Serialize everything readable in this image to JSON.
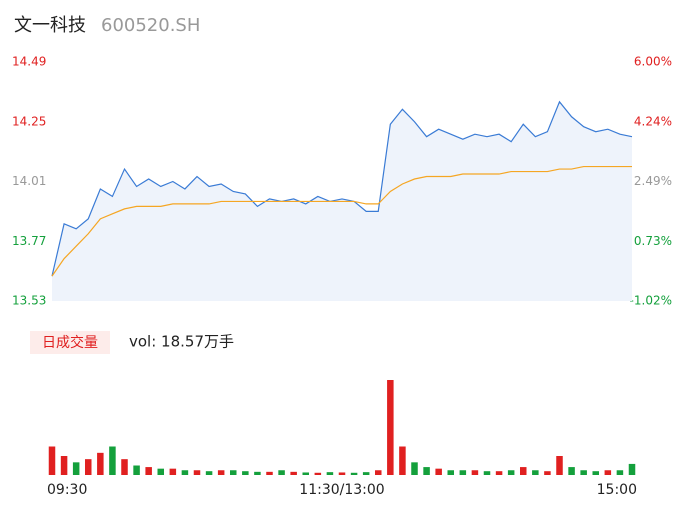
{
  "header": {
    "name": "文一科技",
    "code": "600520.SH"
  },
  "chart_data": [
    {
      "type": "line",
      "x": [
        "09:30",
        null,
        null,
        null,
        null,
        null,
        null,
        null,
        null,
        null,
        null,
        null,
        null,
        null,
        null,
        null,
        null,
        null,
        null,
        null,
        null,
        null,
        null,
        null,
        "11:30/13:00",
        null,
        null,
        null,
        null,
        null,
        null,
        null,
        null,
        null,
        null,
        null,
        null,
        null,
        null,
        null,
        null,
        null,
        null,
        null,
        null,
        null,
        null,
        null,
        "15:00"
      ],
      "series": [
        {
          "name": "price",
          "color": "#3a7bd5",
          "values": [
            13.63,
            13.84,
            13.82,
            13.86,
            13.98,
            13.95,
            14.06,
            13.99,
            14.02,
            13.99,
            14.01,
            13.98,
            14.03,
            13.99,
            14.0,
            13.97,
            13.96,
            13.91,
            13.94,
            13.93,
            13.94,
            13.92,
            13.95,
            13.93,
            13.94,
            13.93,
            13.89,
            13.89,
            14.24,
            14.3,
            14.25,
            14.19,
            14.22,
            14.2,
            14.18,
            14.2,
            14.19,
            14.2,
            14.17,
            14.24,
            14.19,
            14.21,
            14.33,
            14.27,
            14.23,
            14.21,
            14.22,
            14.2,
            14.19
          ]
        },
        {
          "name": "average",
          "color": "#f5a623",
          "values": [
            13.63,
            13.7,
            13.75,
            13.8,
            13.86,
            13.88,
            13.9,
            13.91,
            13.91,
            13.91,
            13.92,
            13.92,
            13.92,
            13.92,
            13.93,
            13.93,
            13.93,
            13.93,
            13.93,
            13.93,
            13.93,
            13.93,
            13.93,
            13.93,
            13.93,
            13.93,
            13.92,
            13.92,
            13.97,
            14.0,
            14.02,
            14.03,
            14.03,
            14.03,
            14.04,
            14.04,
            14.04,
            14.04,
            14.05,
            14.05,
            14.05,
            14.05,
            14.06,
            14.06,
            14.07,
            14.07,
            14.07,
            14.07,
            14.07
          ]
        }
      ],
      "ylim": [
        13.53,
        14.49
      ],
      "yticks": [
        14.49,
        14.25,
        14.01,
        13.77,
        13.53
      ],
      "y2lim": [
        -1.02,
        6.0
      ],
      "y2ticks": [
        {
          "value": 6.0,
          "label": "6.00%"
        },
        {
          "value": 4.24,
          "label": "4.24%"
        },
        {
          "value": 2.49,
          "label": "2.49%"
        },
        {
          "value": 0.73,
          "label": "0.73%"
        },
        {
          "value": -1.02,
          "label": "-1.02%"
        }
      ],
      "up_color": "#e02020",
      "down_color": "#14a03c",
      "flat_color": "#999999"
    },
    {
      "type": "bar",
      "title": "日成交量",
      "subtitle": "vol: 18.57万手",
      "values": [
        9000,
        6000,
        4000,
        5000,
        7000,
        9000,
        5000,
        3000,
        2500,
        2000,
        2000,
        1500,
        1500,
        1200,
        1500,
        1500,
        1200,
        1000,
        1000,
        1500,
        1000,
        800,
        700,
        900,
        800,
        700,
        900,
        1500,
        30000,
        9000,
        4000,
        2500,
        2000,
        1500,
        1500,
        1500,
        1200,
        1200,
        1500,
        2500,
        1500,
        1200,
        6000,
        2500,
        1500,
        1200,
        1500,
        1500,
        3500
      ],
      "ylim": [
        0,
        30000
      ],
      "up_color": "#e02020",
      "down_color": "#14a03c"
    }
  ]
}
